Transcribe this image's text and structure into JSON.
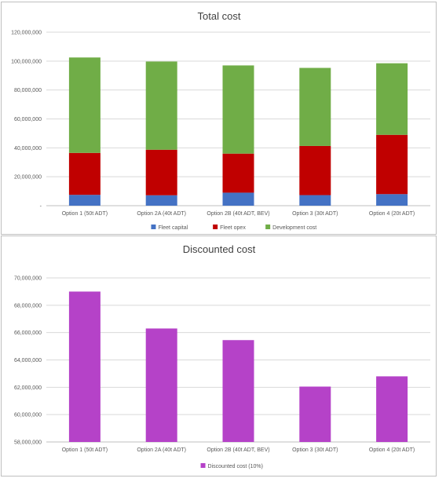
{
  "chart_data": [
    {
      "type": "bar",
      "stacked": true,
      "title": "Total cost",
      "categories": [
        "Option 1 (50t ADT)",
        "Option 2A (40t ADT)",
        "Option 2B (40t ADT, BEV)",
        "Option 3 (30t ADT)",
        "Option 4 (20t ADT)"
      ],
      "series": [
        {
          "name": "Fleet capital",
          "color": "#4472c4",
          "values": [
            7500000,
            7200000,
            9000000,
            7300000,
            8000000
          ]
        },
        {
          "name": "Fleet opex",
          "color": "#c00000",
          "values": [
            29000000,
            31500000,
            27000000,
            34000000,
            41000000
          ]
        },
        {
          "name": "Development cost",
          "color": "#70ad47",
          "values": [
            66000000,
            61000000,
            61000000,
            54000000,
            49500000
          ]
        }
      ],
      "y_ticks": [
        "-",
        "20,000,000",
        "40,000,000",
        "60,000,000",
        "80,000,000",
        "100,000,000",
        "120,000,000"
      ],
      "ylim": [
        0,
        120000000
      ],
      "grid": true,
      "legend_position": "bottom"
    },
    {
      "type": "bar",
      "title": "Discounted cost",
      "categories": [
        "Option 1 (50t ADT)",
        "Option 2A (40t ADT)",
        "Option 2B (40t ADT, BEV)",
        "Option 3 (30t ADT)",
        "Option 4 (20t ADT)"
      ],
      "series": [
        {
          "name": "Discounted cost (10%)",
          "color": "#b542c8",
          "values": [
            69000000,
            66300000,
            65450000,
            62050000,
            62800000
          ]
        }
      ],
      "y_ticks": [
        "58,000,000",
        "60,000,000",
        "62,000,000",
        "64,000,000",
        "66,000,000",
        "68,000,000",
        "70,000,000"
      ],
      "ylim": [
        58000000,
        70000000
      ],
      "grid": true,
      "legend_position": "bottom"
    }
  ]
}
